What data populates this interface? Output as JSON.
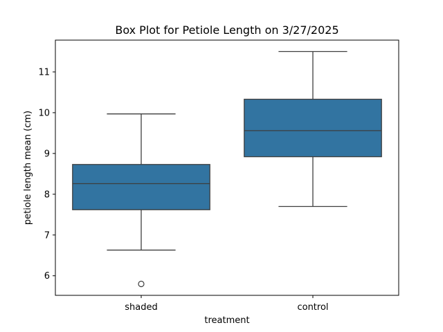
{
  "chart_data": {
    "type": "box",
    "title": "Box Plot for Petiole Length on 3/27/2025",
    "xlabel": "treatment",
    "ylabel": "petiole length mean (cm)",
    "ylim": [
      5.52,
      11.78
    ],
    "yticks": [
      6,
      7,
      8,
      9,
      10,
      11
    ],
    "categories": [
      "shaded",
      "control"
    ],
    "boxes": [
      {
        "category": "shaded",
        "whisker_low": 6.63,
        "q1": 7.62,
        "median": 8.26,
        "q3": 8.73,
        "whisker_high": 9.97,
        "outliers": [
          5.8
        ]
      },
      {
        "category": "control",
        "whisker_low": 7.7,
        "q1": 8.92,
        "median": 9.56,
        "q3": 10.33,
        "whisker_high": 11.5,
        "outliers": []
      }
    ],
    "box_color": "#3274a1",
    "line_color": "#3d3d3d",
    "grid": false,
    "legend": "none"
  }
}
